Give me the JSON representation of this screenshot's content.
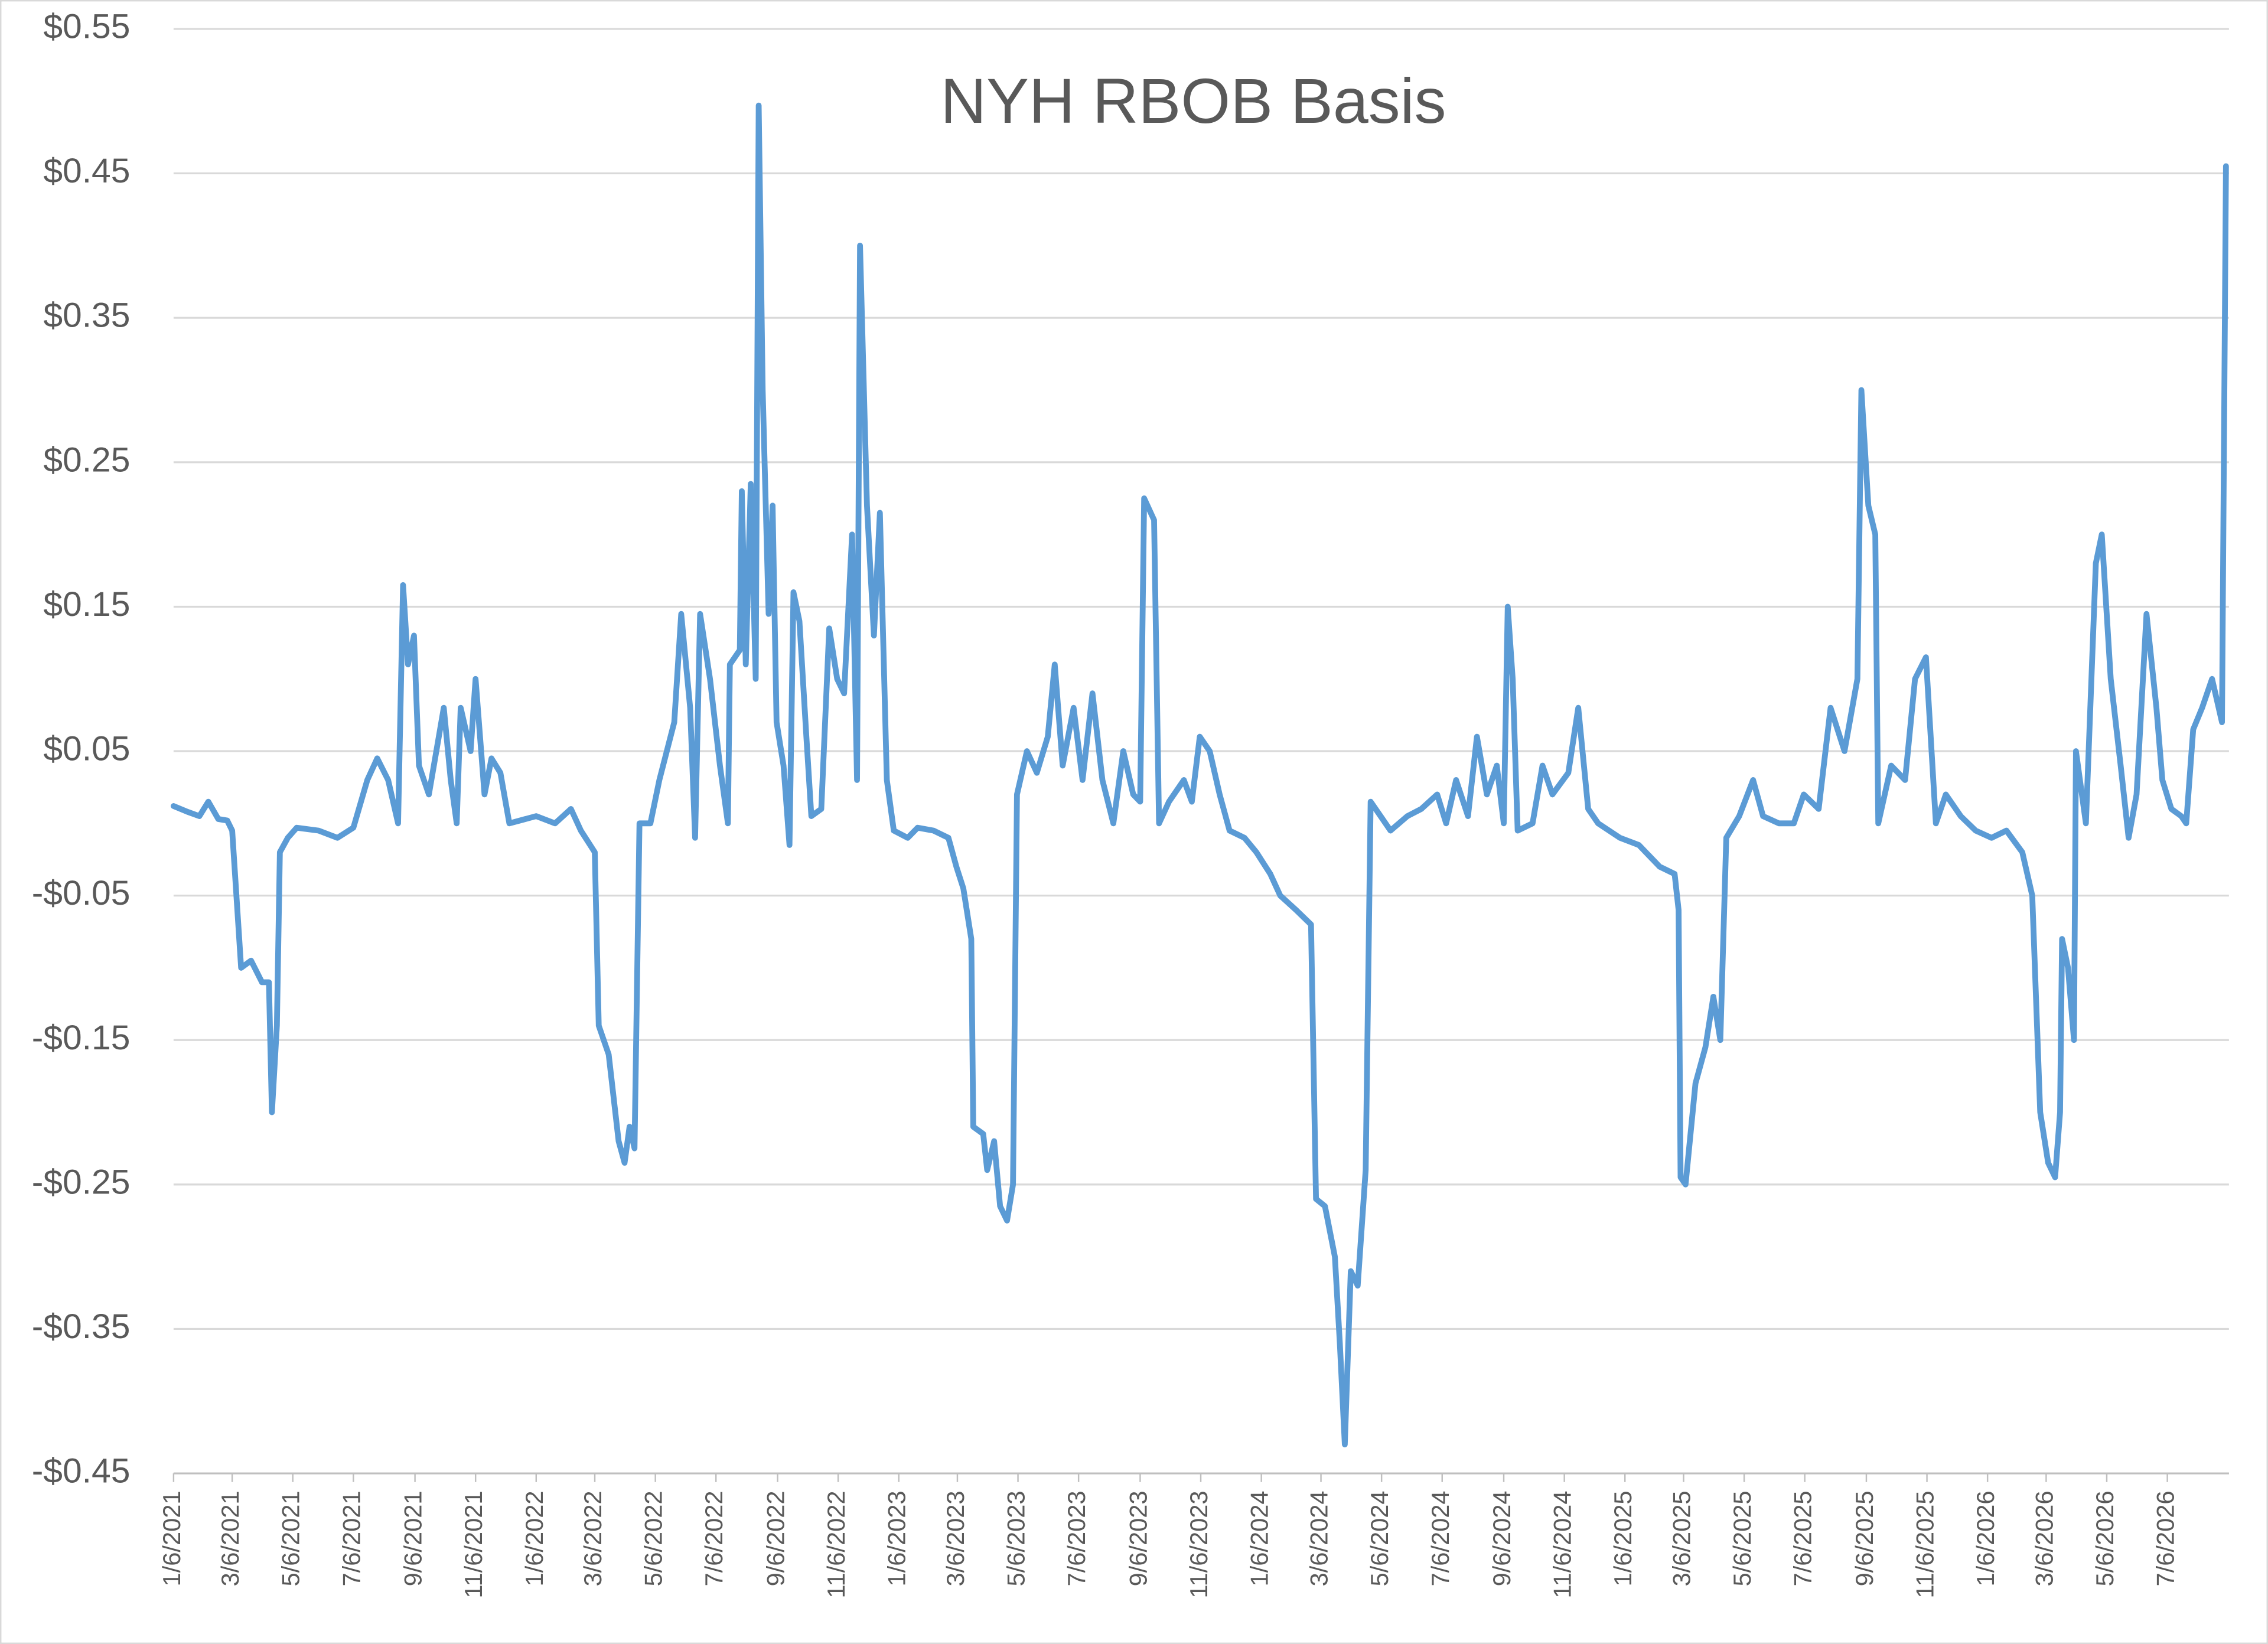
{
  "chart_data": {
    "type": "line",
    "title": "NYH RBOB Basis",
    "color": "#5b9bd5",
    "grid": true,
    "xlim": [
      "1/6/2021",
      "9/6/2026"
    ],
    "xticks": [
      "1/6/2021",
      "3/6/2021",
      "5/6/2021",
      "7/6/2021",
      "9/6/2021",
      "11/6/2021",
      "1/6/2022",
      "3/6/2022",
      "5/6/2022",
      "7/6/2022",
      "9/6/2022",
      "11/6/2022",
      "1/6/2023",
      "3/6/2023",
      "5/6/2023",
      "7/6/2023",
      "9/6/2023",
      "11/6/2023",
      "1/6/2024",
      "3/6/2024",
      "5/6/2024",
      "7/6/2024",
      "9/6/2024",
      "11/6/2024",
      "1/6/2025",
      "3/6/2025",
      "5/6/2025",
      "7/6/2025",
      "9/6/2025",
      "11/6/2025",
      "1/6/2026",
      "3/6/2026",
      "5/6/2026",
      "7/6/2026"
    ],
    "ylim": [
      -0.45,
      0.55
    ],
    "yticks": [
      {
        "value": -0.45,
        "label": "-$0.45"
      },
      {
        "value": -0.35,
        "label": "-$0.35"
      },
      {
        "value": -0.25,
        "label": "-$0.25"
      },
      {
        "value": -0.15,
        "label": "-$0.15"
      },
      {
        "value": -0.05,
        "label": "-$0.05"
      },
      {
        "value": 0.05,
        "label": "$0.05"
      },
      {
        "value": 0.15,
        "label": "$0.15"
      },
      {
        "value": 0.25,
        "label": "$0.25"
      },
      {
        "value": 0.35,
        "label": "$0.35"
      },
      {
        "value": 0.45,
        "label": "$0.45"
      },
      {
        "value": 0.55,
        "label": "$0.55"
      }
    ],
    "x": [
      "1/6/2021",
      "1/20/2021",
      "2/1/2021",
      "2/10/2021",
      "2/20/2021",
      "3/1/2021",
      "3/6/2021",
      "3/15/2021",
      "3/25/2021",
      "4/5/2021",
      "4/12/2021",
      "4/15/2021",
      "4/20/2021",
      "4/23/2021",
      "5/1/2021",
      "5/10/2021",
      "6/1/2021",
      "6/20/2021",
      "7/6/2021",
      "7/20/2021",
      "7/30/2021",
      "8/10/2021",
      "8/20/2021",
      "8/25/2021",
      "8/30/2021",
      "9/5/2021",
      "9/10/2021",
      "9/20/2021",
      "9/30/2021",
      "10/5/2021",
      "10/12/2021",
      "10/18/2021",
      "10/22/2021",
      "11/1/2021",
      "11/6/2021",
      "11/15/2021",
      "11/22/2021",
      "12/1/2021",
      "12/10/2021",
      "1/6/2022",
      "1/25/2022",
      "2/10/2022",
      "2/20/2022",
      "3/6/2022",
      "3/10/2022",
      "3/20/2022",
      "3/30/2022",
      "4/5/2022",
      "4/10/2022",
      "4/15/2022",
      "4/20/2022",
      "5/1/2022",
      "5/10/2022",
      "5/25/2022",
      "6/1/2022",
      "6/10/2022",
      "6/15/2022",
      "6/20/2022",
      "6/30/2022",
      "7/10/2022",
      "7/18/2022",
      "7/20/2022",
      "7/30/2022",
      "8/1/2022",
      "8/5/2022",
      "8/10/2022",
      "8/15/2022",
      "8/18/2022",
      "8/22/2022",
      "8/28/2022",
      "9/1/2022",
      "9/5/2022",
      "9/12/2022",
      "9/18/2022",
      "9/22/2022",
      "9/28/2022",
      "10/5/2022",
      "10/10/2022",
      "10/20/2022",
      "10/28/2022",
      "11/5/2022",
      "11/12/2022",
      "11/20/2022",
      "11/25/2022",
      "11/28/2022",
      "12/5/2022",
      "12/12/2022",
      "12/18/2022",
      "12/25/2022",
      "1/1/2023",
      "1/15/2023",
      "1/25/2023",
      "2/10/2023",
      "2/25/2023",
      "3/5/2023",
      "3/12/2023",
      "3/20/2023",
      "3/22/2023",
      "4/1/2023",
      "4/5/2023",
      "4/12/2023",
      "4/18/2023",
      "4/25/2023",
      "5/1/2023",
      "5/5/2023",
      "5/15/2023",
      "5/25/2023",
      "6/5/2023",
      "6/12/2023",
      "6/20/2023",
      "7/1/2023",
      "7/10/2023",
      "7/20/2023",
      "7/30/2023",
      "8/10/2023",
      "8/20/2023",
      "8/30/2023",
      "9/6/2023",
      "9/10/2023",
      "9/20/2023",
      "9/25/2023",
      "10/5/2023",
      "10/20/2023",
      "10/28/2023",
      "11/5/2023",
      "11/15/2023",
      "11/25/2023",
      "12/5/2023",
      "12/20/2023",
      "1/1/2024",
      "1/15/2024",
      "1/25/2024",
      "2/10/2024",
      "2/25/2024",
      "3/1/2024",
      "3/10/2024",
      "3/20/2024",
      "3/25/2024",
      "3/30/2024",
      "4/5/2024",
      "4/12/2024",
      "4/20/2024",
      "4/25/2024",
      "5/5/2024",
      "5/15/2024",
      "6/1/2024",
      "6/15/2024",
      "7/1/2024",
      "7/10/2024",
      "7/20/2024",
      "8/1/2024",
      "8/10/2024",
      "8/20/2024",
      "8/30/2024",
      "9/6/2024",
      "9/10/2024",
      "9/15/2024",
      "9/20/2024",
      "10/5/2024",
      "10/15/2024",
      "10/25/2024",
      "11/10/2024",
      "11/20/2024",
      "11/30/2024",
      "12/10/2024",
      "1/1/2025",
      "1/20/2025",
      "2/10/2025",
      "2/25/2025",
      "3/1/2025",
      "3/3/2025",
      "3/8/2025",
      "3/18/2025",
      "3/28/2025",
      "4/5/2025",
      "4/12/2025",
      "4/18/2025",
      "5/1/2025",
      "5/15/2025",
      "5/25/2025",
      "6/10/2025",
      "6/25/2025",
      "7/5/2025",
      "7/20/2025",
      "8/1/2025",
      "8/15/2025",
      "8/28/2025",
      "9/1/2025",
      "9/8/2025",
      "9/15/2025",
      "9/18/2025",
      "10/1/2025",
      "10/15/2025",
      "10/25/2025",
      "11/5/2025",
      "11/15/2025",
      "11/25/2025",
      "12/10/2025",
      "12/25/2025",
      "1/10/2026",
      "1/25/2026",
      "2/10/2026",
      "2/20/2026",
      "2/28/2026",
      "3/8/2026",
      "3/15/2026",
      "3/20/2026",
      "3/22/2026",
      "3/28/2026",
      "4/3/2026",
      "4/5/2026",
      "4/15/2026",
      "4/25/2026",
      "5/1/2026",
      "5/10/2026",
      "5/20/2026",
      "5/28/2026",
      "6/5/2026",
      "6/15/2026",
      "6/25/2026",
      "7/1/2026",
      "7/10/2026",
      "7/20/2026",
      "7/25/2026",
      "8/1/2026",
      "8/10/2026",
      "8/20/2026",
      "8/30/2026",
      "9/3/2026"
    ],
    "values": [
      0.012,
      0.008,
      0.005,
      0.015,
      0.003,
      0.002,
      -0.005,
      -0.1,
      -0.095,
      -0.11,
      -0.11,
      -0.2,
      -0.14,
      -0.02,
      -0.01,
      -0.003,
      -0.005,
      -0.01,
      -0.003,
      0.03,
      0.045,
      0.03,
      0.0,
      0.165,
      0.11,
      0.13,
      0.04,
      0.02,
      0.06,
      0.08,
      0.03,
      0.0,
      0.08,
      0.05,
      0.1,
      0.02,
      0.045,
      0.035,
      0.0,
      0.005,
      0.0,
      0.01,
      -0.005,
      -0.02,
      -0.14,
      -0.16,
      -0.22,
      -0.235,
      -0.21,
      -0.225,
      0.0,
      0.0,
      0.03,
      0.07,
      0.145,
      0.08,
      -0.01,
      0.145,
      0.1,
      0.04,
      0.0,
      0.11,
      0.12,
      0.23,
      0.11,
      0.235,
      0.1,
      0.497,
      0.3,
      0.145,
      0.22,
      0.07,
      0.04,
      -0.015,
      0.16,
      0.14,
      0.06,
      0.005,
      0.01,
      0.135,
      0.1,
      0.09,
      0.2,
      0.03,
      0.4,
      0.22,
      0.13,
      0.215,
      0.03,
      -0.005,
      -0.01,
      -0.003,
      -0.005,
      -0.01,
      -0.03,
      -0.045,
      -0.08,
      -0.21,
      -0.215,
      -0.24,
      -0.22,
      -0.265,
      -0.275,
      -0.25,
      0.02,
      0.05,
      0.035,
      0.06,
      0.11,
      0.04,
      0.08,
      0.03,
      0.09,
      0.03,
      0.0,
      0.05,
      0.02,
      0.015,
      0.225,
      0.21,
      0.0,
      0.015,
      0.03,
      0.015,
      0.06,
      0.05,
      0.02,
      -0.005,
      -0.01,
      -0.02,
      -0.035,
      -0.05,
      -0.06,
      -0.07,
      -0.26,
      -0.265,
      -0.3,
      -0.36,
      -0.43,
      -0.31,
      -0.32,
      -0.24,
      0.015,
      0.005,
      -0.005,
      0.005,
      0.01,
      0.02,
      0.0,
      0.03,
      0.005,
      0.06,
      0.02,
      0.04,
      0.0,
      0.15,
      0.1,
      -0.005,
      0.0,
      0.04,
      0.02,
      0.035,
      0.08,
      0.01,
      0.0,
      -0.01,
      -0.015,
      -0.03,
      -0.035,
      -0.06,
      -0.245,
      -0.25,
      -0.18,
      -0.155,
      -0.12,
      -0.15,
      -0.01,
      0.005,
      0.03,
      0.005,
      0.0,
      0.0,
      0.02,
      0.01,
      0.08,
      0.05,
      0.1,
      0.3,
      0.22,
      0.2,
      0.0,
      0.04,
      0.03,
      0.1,
      0.115,
      0.0,
      0.02,
      0.005,
      -0.005,
      -0.01,
      -0.005,
      -0.02,
      -0.05,
      -0.2,
      -0.235,
      -0.245,
      -0.2,
      -0.08,
      -0.1,
      -0.15,
      0.05,
      0.0,
      0.18,
      0.2,
      0.1,
      0.04,
      -0.01,
      0.02,
      0.145,
      0.08,
      0.03,
      0.01,
      0.005,
      0.0,
      0.065,
      0.08,
      0.1,
      0.07,
      0.455
    ]
  }
}
